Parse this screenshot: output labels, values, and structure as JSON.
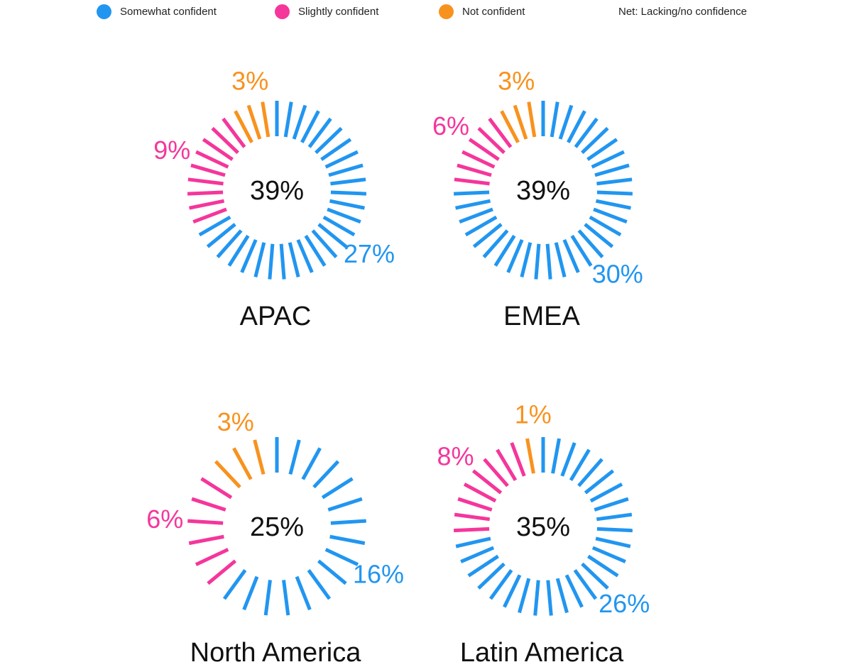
{
  "legend": {
    "items": [
      {
        "label": "Somewhat confident",
        "color": "#2196F0"
      },
      {
        "label": "Slightly confident",
        "color": "#F5369B"
      },
      {
        "label": "Not confident",
        "color": "#F8921E"
      }
    ],
    "net_label": "Net: Lacking/no confidence"
  },
  "chart_data": {
    "type": "radial-bar",
    "series_names": [
      "Somewhat confident",
      "Slightly confident",
      "Not confident"
    ],
    "colors": {
      "somewhat": "#2196F0",
      "slightly": "#F5369B",
      "not": "#F8921E"
    },
    "charts": [
      {
        "region": "APAC",
        "net_label": "39%",
        "somewhat": 27,
        "slightly": 9,
        "not": 3,
        "labels": {
          "somewhat": "27%",
          "slightly": "9%",
          "not": "3%"
        }
      },
      {
        "region": "EMEA",
        "net_label": "39%",
        "somewhat": 30,
        "slightly": 6,
        "not": 3,
        "labels": {
          "somewhat": "30%",
          "slightly": "6%",
          "not": "3%"
        }
      },
      {
        "region": "North America",
        "net_label": "25%",
        "somewhat": 16,
        "slightly": 6,
        "not": 3,
        "labels": {
          "somewhat": "16%",
          "slightly": "6%",
          "not": "3%"
        }
      },
      {
        "region": "Latin America",
        "net_label": "35%",
        "somewhat": 26,
        "slightly": 8,
        "not": 1,
        "labels": {
          "somewhat": "26%",
          "slightly": "8%",
          "not": "1%"
        }
      }
    ]
  }
}
